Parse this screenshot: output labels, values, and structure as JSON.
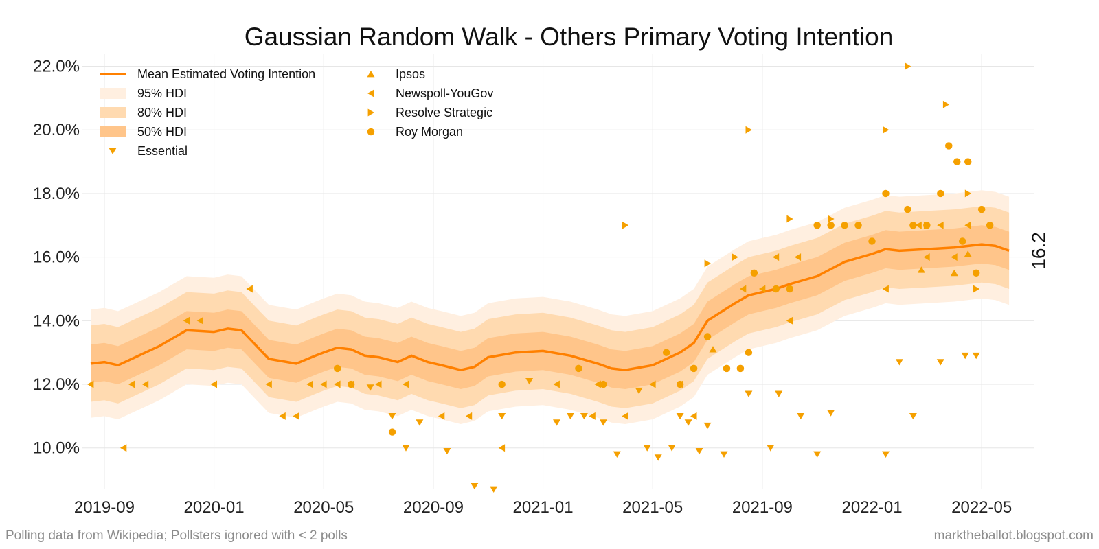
{
  "colors": {
    "line": "#ff8000",
    "hdi95": "#ffefe0",
    "hdi80": "#ffdab0",
    "hdi50": "#ffc58a",
    "points": "#f5a000",
    "grid": "#e6e6e6"
  },
  "footer": {
    "left": "Polling data from Wikipedia; Pollsters ignored with < 2 polls",
    "right": "marktheballot.blogspot.com"
  },
  "chart_data": {
    "type": "line",
    "title": "Gaussian Random Walk - Others Primary Voting Intention",
    "xlabel": "",
    "ylabel": "",
    "x_unit": "months since 2019-01-01",
    "xlim": [
      7.2,
      41.9
    ],
    "ylim": [
      8.7,
      22.4
    ],
    "grid": true,
    "y_ticks": [
      10,
      12,
      14,
      16,
      18,
      20,
      22
    ],
    "y_tick_labels": [
      "10.0%",
      "12.0%",
      "14.0%",
      "16.0%",
      "18.0%",
      "20.0%",
      "22.0%"
    ],
    "x_ticks": [
      8,
      12,
      16,
      20,
      24,
      28,
      32,
      36,
      40
    ],
    "x_tick_labels": [
      "2019-09",
      "2020-01",
      "2020-05",
      "2020-09",
      "2021-01",
      "2021-05",
      "2021-09",
      "2022-01",
      "2022-05"
    ],
    "end_label": "16.2",
    "legend": {
      "position": "top-left",
      "col1": [
        {
          "label": "Mean Estimated Voting Intention",
          "marker": "line"
        },
        {
          "label": "95% HDI",
          "marker": "band95"
        },
        {
          "label": "80% HDI",
          "marker": "band80"
        },
        {
          "label": "50% HDI",
          "marker": "band50"
        },
        {
          "label": "Essential",
          "marker": "tri-down"
        }
      ],
      "col2": [
        {
          "label": "Ipsos",
          "marker": "tri-up"
        },
        {
          "label": "Newspoll-YouGov",
          "marker": "tri-left"
        },
        {
          "label": "Resolve Strategic",
          "marker": "tri-right"
        },
        {
          "label": "Roy Morgan",
          "marker": "circle"
        }
      ]
    },
    "mean": {
      "x": [
        7.5,
        8.0,
        8.5,
        9.0,
        10.0,
        11.0,
        12.0,
        12.5,
        13.0,
        14.0,
        15.0,
        15.7,
        16.0,
        16.5,
        17.0,
        17.5,
        18.0,
        18.7,
        19.2,
        19.8,
        20.3,
        21.0,
        21.5,
        22.0,
        23.0,
        24.0,
        25.0,
        26.0,
        26.5,
        27.0,
        28.0,
        29.0,
        29.5,
        30.0,
        31.0,
        31.5,
        32.0,
        32.5,
        33.0,
        34.0,
        35.0,
        36.0,
        36.5,
        37.0,
        38.0,
        39.0,
        40.0,
        40.5,
        41.0
      ],
      "y": [
        12.65,
        12.7,
        12.6,
        12.8,
        13.2,
        13.7,
        13.65,
        13.75,
        13.7,
        12.8,
        12.65,
        12.9,
        13.0,
        13.15,
        13.1,
        12.9,
        12.85,
        12.7,
        12.9,
        12.7,
        12.6,
        12.45,
        12.55,
        12.85,
        13.0,
        13.05,
        12.9,
        12.65,
        12.5,
        12.45,
        12.6,
        13.0,
        13.3,
        14.0,
        14.55,
        14.8,
        14.9,
        15.0,
        15.15,
        15.4,
        15.85,
        16.1,
        16.25,
        16.2,
        16.25,
        16.3,
        16.4,
        16.35,
        16.2
      ]
    },
    "hdi_half_width": {
      "hdi95": 1.7,
      "hdi80": 1.2,
      "hdi50": 0.6
    },
    "series": [
      {
        "name": "Essential",
        "marker": "tri-down",
        "points": [
          [
            17.7,
            11.9
          ],
          [
            18.5,
            11.0
          ],
          [
            19.0,
            10.0
          ],
          [
            19.5,
            10.8
          ],
          [
            20.5,
            9.9
          ],
          [
            21.5,
            8.8
          ],
          [
            22.2,
            8.7
          ],
          [
            22.5,
            11.0
          ],
          [
            23.5,
            12.1
          ],
          [
            24.5,
            10.8
          ],
          [
            25.0,
            11.0
          ],
          [
            25.5,
            11.0
          ],
          [
            26.2,
            10.8
          ],
          [
            26.7,
            9.8
          ],
          [
            27.5,
            11.8
          ],
          [
            27.8,
            10.0
          ],
          [
            28.2,
            9.7
          ],
          [
            28.7,
            10.0
          ],
          [
            29.0,
            11.0
          ],
          [
            29.3,
            10.8
          ],
          [
            29.7,
            9.9
          ],
          [
            30.0,
            10.7
          ],
          [
            30.6,
            9.8
          ],
          [
            31.5,
            11.7
          ],
          [
            32.3,
            10.0
          ],
          [
            32.6,
            11.7
          ],
          [
            33.4,
            11.0
          ],
          [
            34.0,
            9.8
          ],
          [
            34.5,
            11.1
          ],
          [
            36.5,
            9.8
          ],
          [
            37.0,
            12.7
          ],
          [
            37.5,
            11.0
          ],
          [
            38.5,
            12.7
          ],
          [
            39.4,
            12.9
          ],
          [
            39.8,
            12.9
          ]
        ]
      },
      {
        "name": "Ipsos",
        "marker": "tri-up",
        "points": [
          [
            30.2,
            13.1
          ],
          [
            37.8,
            15.6
          ],
          [
            39.0,
            15.5
          ],
          [
            39.5,
            16.1
          ]
        ]
      },
      {
        "name": "Newspoll-YouGov",
        "marker": "tri-left",
        "points": [
          [
            7.5,
            12.0
          ],
          [
            8.7,
            10.0
          ],
          [
            9.0,
            12.0
          ],
          [
            9.5,
            12.0
          ],
          [
            11.0,
            14.0
          ],
          [
            11.5,
            14.0
          ],
          [
            12.0,
            12.0
          ],
          [
            13.3,
            15.0
          ],
          [
            14.0,
            12.0
          ],
          [
            14.5,
            11.0
          ],
          [
            15.0,
            11.0
          ],
          [
            15.5,
            12.0
          ],
          [
            16.0,
            12.0
          ],
          [
            16.5,
            12.0
          ],
          [
            17.0,
            12.0
          ],
          [
            18.0,
            12.0
          ],
          [
            19.0,
            12.0
          ],
          [
            20.3,
            11.0
          ],
          [
            21.3,
            11.0
          ],
          [
            22.5,
            10.0
          ],
          [
            24.5,
            12.0
          ],
          [
            25.8,
            11.0
          ],
          [
            26.0,
            12.0
          ],
          [
            27.0,
            11.0
          ],
          [
            28.0,
            12.0
          ],
          [
            29.0,
            12.0
          ],
          [
            29.5,
            11.0
          ],
          [
            31.3,
            15.0
          ],
          [
            32.0,
            15.0
          ],
          [
            32.5,
            16.0
          ],
          [
            33.0,
            14.0
          ],
          [
            33.3,
            16.0
          ],
          [
            36.5,
            15.0
          ],
          [
            37.7,
            17.0
          ],
          [
            38.0,
            16.0
          ],
          [
            38.5,
            17.0
          ],
          [
            39.0,
            16.0
          ],
          [
            39.5,
            17.0
          ]
        ]
      },
      {
        "name": "Resolve Strategic",
        "marker": "tri-right",
        "points": [
          [
            27.0,
            17.0
          ],
          [
            30.0,
            15.8
          ],
          [
            31.0,
            16.0
          ],
          [
            31.5,
            20.0
          ],
          [
            33.0,
            17.2
          ],
          [
            34.5,
            17.2
          ],
          [
            36.5,
            20.0
          ],
          [
            37.3,
            22.0
          ],
          [
            38.0,
            17.0
          ],
          [
            38.7,
            20.8
          ],
          [
            39.5,
            18.0
          ],
          [
            39.8,
            15.0
          ]
        ]
      },
      {
        "name": "Roy Morgan",
        "marker": "circle",
        "points": [
          [
            16.5,
            12.5
          ],
          [
            17.0,
            12.0
          ],
          [
            18.5,
            10.5
          ],
          [
            22.5,
            12.0
          ],
          [
            25.3,
            12.5
          ],
          [
            26.2,
            12.0
          ],
          [
            28.5,
            13.0
          ],
          [
            29.0,
            12.0
          ],
          [
            29.5,
            12.5
          ],
          [
            30.0,
            13.5
          ],
          [
            30.7,
            12.5
          ],
          [
            31.2,
            12.5
          ],
          [
            31.5,
            13.0
          ],
          [
            31.7,
            15.5
          ],
          [
            32.5,
            15.0
          ],
          [
            33.0,
            15.0
          ],
          [
            34.0,
            17.0
          ],
          [
            34.5,
            17.0
          ],
          [
            35.0,
            17.0
          ],
          [
            35.5,
            17.0
          ],
          [
            36.0,
            16.5
          ],
          [
            36.5,
            18.0
          ],
          [
            37.3,
            17.5
          ],
          [
            37.5,
            17.0
          ],
          [
            38.0,
            17.0
          ],
          [
            38.5,
            18.0
          ],
          [
            38.8,
            19.5
          ],
          [
            39.1,
            19.0
          ],
          [
            39.3,
            16.5
          ],
          [
            39.5,
            19.0
          ],
          [
            39.8,
            15.5
          ],
          [
            40.0,
            17.5
          ],
          [
            40.3,
            17.0
          ]
        ]
      }
    ]
  }
}
